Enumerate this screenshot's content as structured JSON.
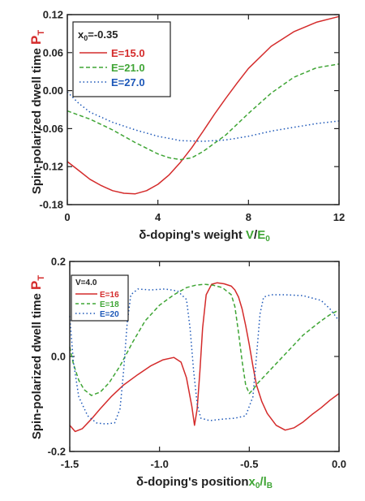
{
  "colors": {
    "red": "#d42b2b",
    "green": "#3fa535",
    "blue": "#1c57b8",
    "dark": "#333333"
  },
  "chart_data": [
    {
      "type": "line",
      "panel": "top",
      "ylabel_text": "Spin-polarized dwell time ",
      "ylabel_sym": "P",
      "ylabel_sub": "T",
      "xlabel_text": "δ-doping's weight ",
      "xlabel_var": "V",
      "xlabel_slash": "/",
      "xlabel_var2": "E",
      "xlabel_sub2": "0",
      "xlim": [
        0,
        12
      ],
      "ylim": [
        -0.18,
        0.12
      ],
      "xticks": [
        "0",
        "4",
        "8",
        "12"
      ],
      "xtick_values": [
        0,
        4,
        8,
        12
      ],
      "yticks": [
        "-0.18",
        "-0.12",
        "-0.06",
        "0.00",
        "0.06",
        "0.12"
      ],
      "ytick_values": [
        -0.18,
        -0.12,
        -0.06,
        0.0,
        0.06,
        0.12
      ],
      "legend": {
        "header_main": "x",
        "header_sub": "0",
        "header_rest": "=-0.35",
        "position": "top-left"
      },
      "series": [
        {
          "name": "E=15.0",
          "style": "solid",
          "color": "red",
          "x": [
            0,
            0.5,
            1,
            1.5,
            2,
            2.5,
            3,
            3.5,
            4,
            4.5,
            5,
            5.5,
            6,
            6.5,
            7,
            7.5,
            8,
            9,
            10,
            11,
            12
          ],
          "y": [
            -0.112,
            -0.126,
            -0.14,
            -0.15,
            -0.158,
            -0.162,
            -0.163,
            -0.158,
            -0.148,
            -0.133,
            -0.113,
            -0.09,
            -0.064,
            -0.037,
            -0.012,
            0.012,
            0.035,
            0.07,
            0.093,
            0.108,
            0.117
          ]
        },
        {
          "name": "E=21.0",
          "style": "dashed",
          "color": "green",
          "x": [
            0,
            1,
            2,
            3,
            4,
            4.5,
            5,
            5.5,
            6,
            7,
            8,
            9,
            10,
            11,
            12
          ],
          "y": [
            -0.032,
            -0.045,
            -0.062,
            -0.082,
            -0.1,
            -0.106,
            -0.109,
            -0.106,
            -0.096,
            -0.07,
            -0.036,
            -0.004,
            0.021,
            0.036,
            0.042
          ]
        },
        {
          "name": "E=27.0",
          "style": "dotted",
          "color": "blue",
          "x": [
            0,
            0.5,
            1,
            2,
            3,
            4,
            5,
            6,
            7,
            8,
            9,
            10,
            11,
            12
          ],
          "y": [
            -0.002,
            -0.02,
            -0.034,
            -0.05,
            -0.062,
            -0.072,
            -0.079,
            -0.08,
            -0.078,
            -0.072,
            -0.064,
            -0.058,
            -0.052,
            -0.048
          ]
        }
      ]
    },
    {
      "type": "line",
      "panel": "bottom",
      "ylabel_text": "Spin-polarized dwell time ",
      "ylabel_sym": "P",
      "ylabel_sub": "T",
      "xlabel_text": "δ-doping's position",
      "xlabel_var": "x",
      "xlabel_sub": "0",
      "xlabel_slash": "/",
      "xlabel_var2": "l",
      "xlabel_sub2": "B",
      "xlim": [
        -1.5,
        0.0
      ],
      "ylim": [
        -0.2,
        0.2
      ],
      "xticks": [
        "-1.5",
        "-1.0",
        "-0.5",
        "0.0"
      ],
      "xtick_values": [
        -1.5,
        -1.0,
        -0.5,
        0.0
      ],
      "yticks": [
        "-0.2",
        "0.0",
        "0.2"
      ],
      "ytick_values": [
        -0.2,
        0.0,
        0.2
      ],
      "legend": {
        "header": "V=4.0",
        "position": "top-left"
      },
      "series": [
        {
          "name": "E=16",
          "style": "solid",
          "color": "red",
          "x": [
            -1.5,
            -1.47,
            -1.43,
            -1.38,
            -1.33,
            -1.27,
            -1.2,
            -1.12,
            -1.05,
            -0.98,
            -0.92,
            -0.88,
            -0.85,
            -0.82,
            -0.805,
            -0.79,
            -0.775,
            -0.76,
            -0.74,
            -0.71,
            -0.68,
            -0.64,
            -0.6,
            -0.58,
            -0.56,
            -0.54,
            -0.52,
            -0.5,
            -0.48,
            -0.46,
            -0.43,
            -0.4,
            -0.35,
            -0.3,
            -0.25,
            -0.2,
            -0.15,
            -0.1,
            -0.05,
            0.0
          ],
          "y": [
            -0.145,
            -0.158,
            -0.152,
            -0.132,
            -0.11,
            -0.085,
            -0.06,
            -0.038,
            -0.02,
            -0.007,
            -0.002,
            -0.012,
            -0.045,
            -0.105,
            -0.145,
            -0.11,
            -0.03,
            0.06,
            0.13,
            0.152,
            0.155,
            0.153,
            0.148,
            0.14,
            0.125,
            0.1,
            0.065,
            0.025,
            -0.02,
            -0.06,
            -0.095,
            -0.12,
            -0.145,
            -0.155,
            -0.15,
            -0.138,
            -0.122,
            -0.108,
            -0.092,
            -0.078
          ]
        },
        {
          "name": "E=18",
          "style": "dashed",
          "color": "green",
          "x": [
            -1.5,
            -1.48,
            -1.45,
            -1.42,
            -1.38,
            -1.33,
            -1.28,
            -1.22,
            -1.15,
            -1.08,
            -1.0,
            -0.92,
            -0.85,
            -0.8,
            -0.75,
            -0.7,
            -0.65,
            -0.6,
            -0.58,
            -0.56,
            -0.54,
            -0.52,
            -0.5,
            -0.48,
            -0.45,
            -0.4,
            -0.35,
            -0.3,
            -0.25,
            -0.2,
            -0.15,
            -0.1,
            -0.05,
            0.0
          ],
          "y": [
            0.02,
            -0.015,
            -0.05,
            -0.07,
            -0.082,
            -0.075,
            -0.055,
            -0.02,
            0.03,
            0.075,
            0.108,
            0.13,
            0.145,
            0.15,
            0.152,
            0.15,
            0.145,
            0.13,
            0.105,
            0.05,
            -0.01,
            -0.06,
            -0.078,
            -0.07,
            -0.055,
            -0.035,
            -0.015,
            0.005,
            0.025,
            0.045,
            0.06,
            0.075,
            0.088,
            0.098
          ]
        },
        {
          "name": "E=20",
          "style": "dotted",
          "color": "blue",
          "x": [
            -1.5,
            -1.48,
            -1.45,
            -1.4,
            -1.35,
            -1.3,
            -1.25,
            -1.22,
            -1.2,
            -1.18,
            -1.16,
            -1.12,
            -1.05,
            -0.97,
            -0.9,
            -0.85,
            -0.83,
            -0.81,
            -0.79,
            -0.77,
            -0.72,
            -0.65,
            -0.58,
            -0.52,
            -0.48,
            -0.46,
            -0.44,
            -0.42,
            -0.38,
            -0.3,
            -0.2,
            -0.1,
            -0.05,
            0.0
          ],
          "y": [
            0.085,
            -0.01,
            -0.085,
            -0.125,
            -0.14,
            -0.142,
            -0.14,
            -0.11,
            -0.03,
            0.07,
            0.13,
            0.142,
            0.14,
            0.142,
            0.138,
            0.12,
            0.06,
            -0.03,
            -0.1,
            -0.13,
            -0.135,
            -0.132,
            -0.13,
            -0.125,
            -0.085,
            0.0,
            0.09,
            0.125,
            0.13,
            0.13,
            0.128,
            0.118,
            0.1,
            0.075
          ]
        }
      ]
    }
  ]
}
